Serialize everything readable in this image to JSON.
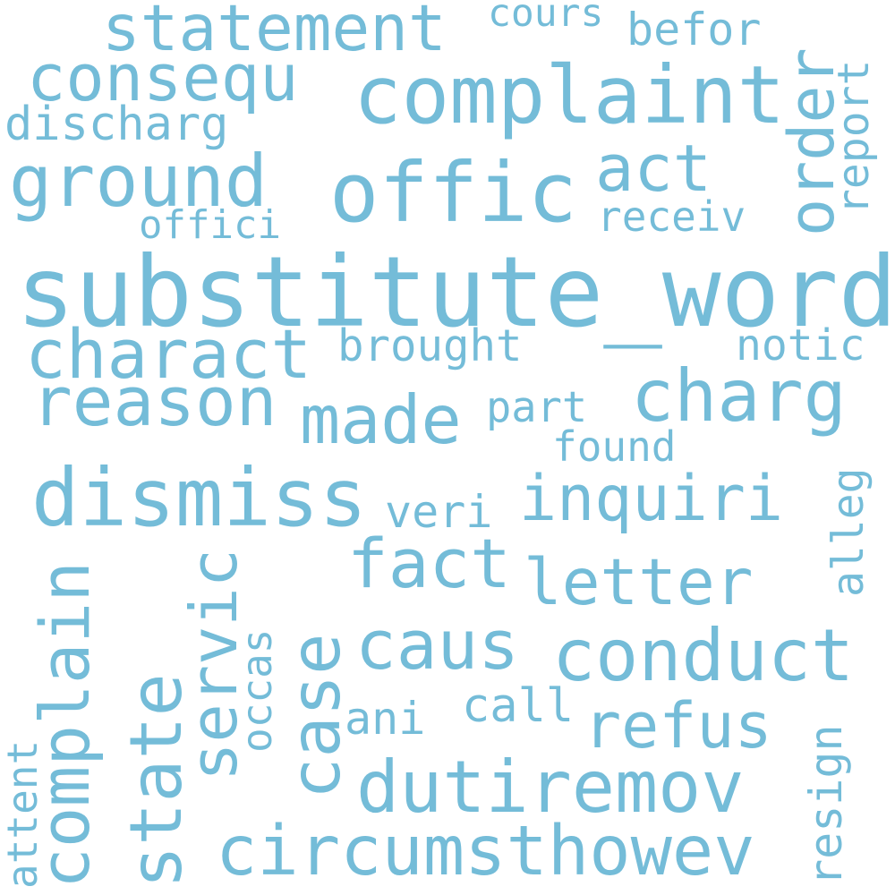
{
  "colors": {
    "background": "#ffffff",
    "word": "#74bcd8"
  },
  "words": {
    "substitute_word": "substitute_word",
    "offic": "offic",
    "complaint": "complaint",
    "statement": "statement",
    "consequ": "consequ",
    "ground": "ground",
    "act": "act",
    "order": "order",
    "cours": "cours",
    "befor": "befor",
    "report": "report",
    "discharg": "discharg",
    "receiv": "receiv",
    "offici": "offici",
    "charact": "charact",
    "brought": "brought",
    "notic": "notic",
    "reason": "reason",
    "made": "made",
    "charg": "charg",
    "part": "part",
    "found": "found",
    "dismiss": "dismiss",
    "veri": "veri",
    "inquiri": "inquiri",
    "alleg": "alleg",
    "fact": "fact",
    "letter": "letter",
    "servic": "servic",
    "complain": "complain",
    "case": "case",
    "occas": "occas",
    "caus": "caus",
    "conduct": "conduct",
    "state": "state",
    "call": "call",
    "ani": "ani",
    "refus": "refus",
    "attent": "attent",
    "dutiremov": "dutiremov",
    "resign": "resign",
    "circumsthowev": "circumsthowev"
  }
}
